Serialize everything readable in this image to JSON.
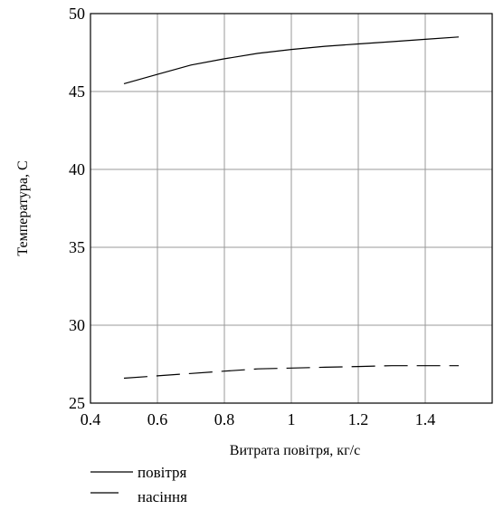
{
  "chart_data": {
    "type": "line",
    "xlabel": "Витрата повітря, кг/с",
    "ylabel": "Температура, С",
    "xlim": [
      0.4,
      1.6
    ],
    "ylim": [
      25,
      50
    ],
    "x_ticks": [
      0.4,
      0.6,
      0.8,
      1,
      1.2,
      1.4
    ],
    "y_ticks": [
      25,
      30,
      35,
      40,
      45,
      50
    ],
    "x_tick_labels": [
      "0.4",
      "0.6",
      "0.8",
      "1",
      "1.2",
      "1.4"
    ],
    "y_tick_labels": [
      "25",
      "30",
      "35",
      "40",
      "45",
      "50"
    ],
    "grid": true,
    "legend_position": "bottom-left",
    "series": [
      {
        "name": "повітря",
        "style": "solid",
        "x": [
          0.5,
          0.6,
          0.7,
          0.8,
          0.9,
          1.0,
          1.1,
          1.2,
          1.3,
          1.4,
          1.5
        ],
        "y": [
          45.5,
          46.1,
          46.7,
          47.1,
          47.45,
          47.7,
          47.9,
          48.05,
          48.2,
          48.35,
          48.5
        ]
      },
      {
        "name": "насіння",
        "style": "dashed",
        "x": [
          0.5,
          0.6,
          0.7,
          0.8,
          0.9,
          1.0,
          1.1,
          1.2,
          1.3,
          1.4,
          1.5
        ],
        "y": [
          26.6,
          26.75,
          26.9,
          27.05,
          27.2,
          27.25,
          27.3,
          27.35,
          27.4,
          27.4,
          27.4
        ]
      }
    ]
  }
}
